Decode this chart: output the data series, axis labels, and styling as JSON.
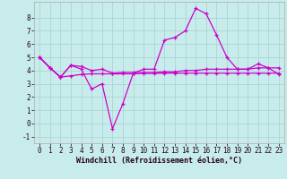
{
  "background_color": "#c8ecec",
  "grid_color": "#b0d8d8",
  "line_color": "#cc00cc",
  "marker_color": "#cc00cc",
  "xlabel": "Windchill (Refroidissement éolien,°C)",
  "xlim": [
    -0.5,
    23.5
  ],
  "ylim": [
    -1.5,
    9.2
  ],
  "xticks": [
    0,
    1,
    2,
    3,
    4,
    5,
    6,
    7,
    8,
    9,
    10,
    11,
    12,
    13,
    14,
    15,
    16,
    17,
    18,
    19,
    20,
    21,
    22,
    23
  ],
  "yticks": [
    -1,
    0,
    1,
    2,
    3,
    4,
    5,
    6,
    7,
    8
  ],
  "series": [
    [
      5.0,
      4.2,
      3.5,
      4.4,
      4.1,
      2.6,
      3.0,
      -0.4,
      1.5,
      3.8,
      4.1,
      4.1,
      6.3,
      6.5,
      7.0,
      8.7,
      8.3,
      6.7,
      5.0,
      4.1,
      4.1,
      4.5,
      4.2,
      3.7
    ],
    [
      5.0,
      4.2,
      3.5,
      4.4,
      4.3,
      4.0,
      4.1,
      3.8,
      3.85,
      3.85,
      3.85,
      3.85,
      3.9,
      3.9,
      4.0,
      4.0,
      4.1,
      4.1,
      4.1,
      4.1,
      4.1,
      4.2,
      4.2,
      4.2
    ],
    [
      5.0,
      4.2,
      3.5,
      3.6,
      3.7,
      3.75,
      3.75,
      3.75,
      3.75,
      3.75,
      3.78,
      3.78,
      3.8,
      3.8,
      3.8,
      3.8,
      3.8,
      3.8,
      3.8,
      3.8,
      3.8,
      3.8,
      3.8,
      3.8
    ]
  ],
  "font_size_ticks": 5.5,
  "font_size_xlabel": 6.0,
  "tick_font_family": "monospace"
}
